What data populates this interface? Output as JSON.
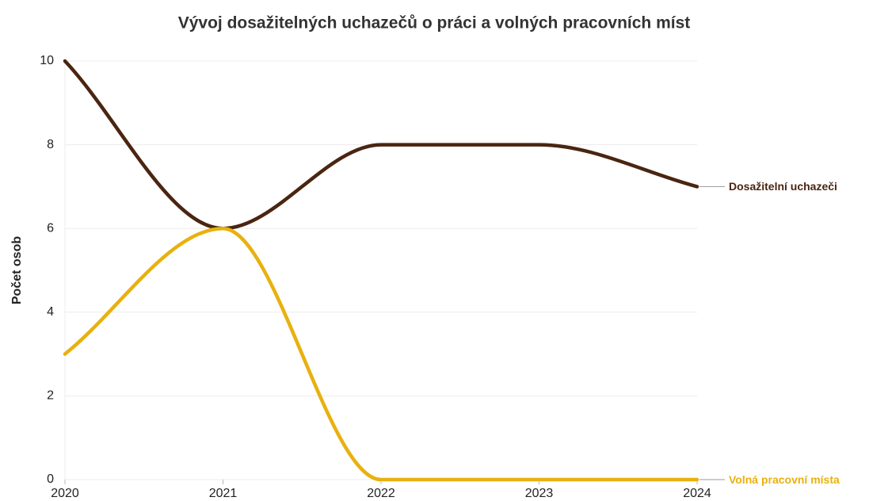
{
  "chart_data": {
    "type": "line",
    "title": "Vývoj dosažitelných uchazečů o práci a volných pracovních míst",
    "y_label": "Počet osob",
    "x": [
      2020,
      2021,
      2022,
      2023,
      2024
    ],
    "series": [
      {
        "name": "Dosažitelní uchazeči",
        "color": "#4a2511",
        "values": [
          10,
          6,
          8,
          8,
          7
        ]
      },
      {
        "name": "Volná pracovní místa",
        "color": "#e8b10f",
        "values": [
          3,
          6,
          0,
          0,
          0
        ]
      }
    ],
    "xlim": [
      2020,
      2024
    ],
    "xticks": [
      2020,
      2021,
      2022,
      2023,
      2024
    ],
    "ylim": [
      0,
      10
    ],
    "yticks": [
      0,
      2,
      4,
      6,
      8,
      10
    ],
    "grid": true
  }
}
